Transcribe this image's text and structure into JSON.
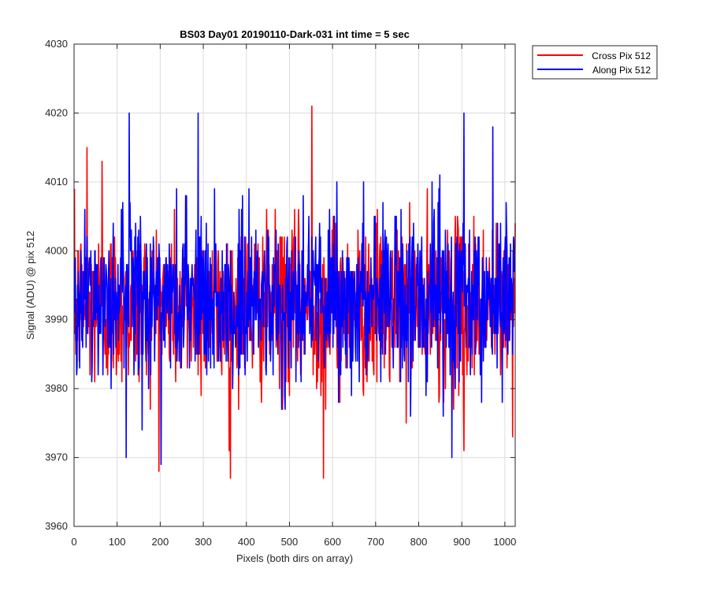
{
  "chart_data": {
    "type": "line",
    "title": "BS03 Day01 20190110-Dark-031 int time = 5 sec",
    "xlabel": "Pixels (both dirs on array)",
    "ylabel": "Signal (ADU) @ pix 512",
    "xlim": [
      0,
      1024
    ],
    "ylim": [
      3960,
      4030
    ],
    "xticks": [
      0,
      100,
      200,
      300,
      400,
      500,
      600,
      700,
      800,
      900,
      1000
    ],
    "yticks": [
      3960,
      3970,
      3980,
      3990,
      4000,
      4010,
      4020,
      4030
    ],
    "grid": true,
    "legend_position": "outside-top-right",
    "series": [
      {
        "name": "Cross Pix 512",
        "color": "#ff0000",
        "x_start": 1,
        "x_step": 1,
        "count": 1024,
        "noise_mean": 3992,
        "noise_std": 6,
        "highlights": [
          {
            "x": 30,
            "y": 4015
          },
          {
            "x": 65,
            "y": 4013
          },
          {
            "x": 360,
            "y": 3971
          },
          {
            "x": 552,
            "y": 4021
          },
          {
            "x": 579,
            "y": 3967
          },
          {
            "x": 905,
            "y": 3971
          },
          {
            "x": 1018,
            "y": 3973
          }
        ]
      },
      {
        "name": "Along Pix 512",
        "color": "#0000ff",
        "x_start": 1,
        "x_step": 1,
        "count": 1024,
        "noise_mean": 3993,
        "noise_std": 6,
        "highlights": [
          {
            "x": 128,
            "y": 4020
          },
          {
            "x": 202,
            "y": 3969
          },
          {
            "x": 288,
            "y": 4020
          },
          {
            "x": 905,
            "y": 4020
          },
          {
            "x": 972,
            "y": 4018
          },
          {
            "x": 121,
            "y": 3970
          },
          {
            "x": 877,
            "y": 3970
          }
        ]
      }
    ]
  }
}
